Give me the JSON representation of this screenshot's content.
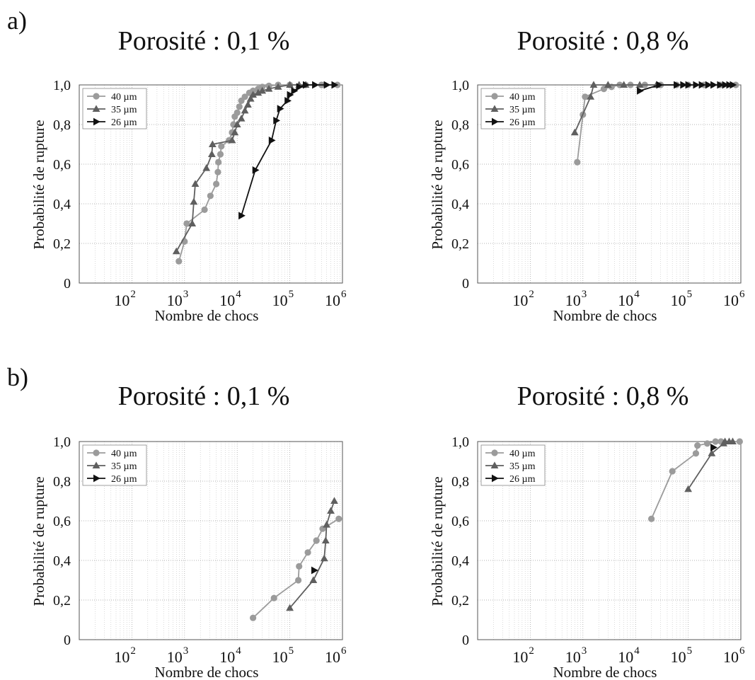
{
  "labels": {
    "a": "a)",
    "b": "b)"
  },
  "titles": {
    "a1": "Porosité : 0,1 %",
    "a2": "Porosité : 0,8 %",
    "b1": "Porosité : 0,1 %",
    "b2": "Porosité : 0,8 %"
  },
  "legend": [
    {
      "name": "40 µm",
      "marker": "circle",
      "color": "#9b9b9b"
    },
    {
      "name": "35 µm",
      "marker": "triangle-up",
      "color": "#5f5f5f"
    },
    {
      "name": "26 µm",
      "marker": "triangle-right",
      "color": "#111111"
    }
  ],
  "chart_data": [
    {
      "type": "line",
      "panel": "a1",
      "title": "Porosité : 0,1 %",
      "xlabel": "Nombre de chocs",
      "ylabel": "Probabilité de rupture",
      "xscale": "log",
      "xlim": [
        10,
        1000000
      ],
      "ylim": [
        0,
        1
      ],
      "xticks": [
        {
          "value": 100,
          "base": "10",
          "exp": "2"
        },
        {
          "value": 1000,
          "base": "10",
          "exp": "3"
        },
        {
          "value": 10000,
          "base": "10",
          "exp": "4"
        },
        {
          "value": 100000,
          "base": "10",
          "exp": "5"
        },
        {
          "value": 1000000,
          "base": "10",
          "exp": "6"
        }
      ],
      "yticks": [
        {
          "value": 0,
          "label": "0"
        },
        {
          "value": 0.2,
          "label": "0,2"
        },
        {
          "value": 0.4,
          "label": "0,4"
        },
        {
          "value": 0.6,
          "label": "0,6"
        },
        {
          "value": 0.8,
          "label": "0,8"
        },
        {
          "value": 1,
          "label": "1,0"
        }
      ],
      "grid": true,
      "legend_position": "top-left",
      "series": [
        {
          "name": "40 µm",
          "marker": "circle",
          "color": "#9b9b9b",
          "x": [
            780,
            1000,
            1100,
            2400,
            3100,
            4000,
            4300,
            4400,
            4800,
            5000,
            7000,
            8000,
            8500,
            9000,
            10000,
            11000,
            12000,
            14000,
            17000,
            20000,
            25000,
            30000,
            40000,
            60000,
            100000,
            200000,
            400000,
            800000
          ],
          "y": [
            0.11,
            0.21,
            0.3,
            0.37,
            0.44,
            0.5,
            0.56,
            0.61,
            0.65,
            0.69,
            0.72,
            0.76,
            0.8,
            0.84,
            0.86,
            0.89,
            0.92,
            0.94,
            0.96,
            0.97,
            0.98,
            0.99,
            0.995,
            1.0,
            1.0,
            1.0,
            1.0,
            1.0
          ]
        },
        {
          "name": "35 µm",
          "marker": "triangle-up",
          "color": "#5f5f5f",
          "x": [
            700,
            1400,
            1500,
            1600,
            2600,
            3300,
            3400,
            8000,
            9000,
            10000,
            12000,
            14000,
            16000,
            18000,
            20000,
            25000,
            30000,
            40000,
            60000,
            100000,
            150000,
            200000
          ],
          "y": [
            0.16,
            0.3,
            0.41,
            0.5,
            0.58,
            0.65,
            0.7,
            0.72,
            0.76,
            0.8,
            0.83,
            0.87,
            0.9,
            0.93,
            0.95,
            0.96,
            0.97,
            0.98,
            0.99,
            1.0,
            1.0,
            1.0
          ]
        },
        {
          "name": "26 µm",
          "marker": "triangle-right",
          "color": "#111111",
          "x": [
            12000,
            22000,
            45000,
            55000,
            65000,
            90000,
            100000,
            120000,
            150000,
            200000,
            300000,
            500000,
            700000
          ],
          "y": [
            0.34,
            0.57,
            0.72,
            0.82,
            0.88,
            0.92,
            0.95,
            0.97,
            0.99,
            1.0,
            1.0,
            1.0,
            1.0
          ]
        }
      ]
    },
    {
      "type": "line",
      "panel": "a2",
      "title": "Porosité : 0,8 %",
      "xlabel": "Nombre de chocs",
      "ylabel": "Probabilité de rupture",
      "xscale": "log",
      "xlim": [
        10,
        1000000
      ],
      "ylim": [
        0,
        1
      ],
      "xticks": [
        {
          "value": 100,
          "base": "10",
          "exp": "2"
        },
        {
          "value": 1000,
          "base": "10",
          "exp": "3"
        },
        {
          "value": 10000,
          "base": "10",
          "exp": "4"
        },
        {
          "value": 100000,
          "base": "10",
          "exp": "5"
        },
        {
          "value": 1000000,
          "base": "10",
          "exp": "6"
        }
      ],
      "yticks": [
        {
          "value": 0,
          "label": "0"
        },
        {
          "value": 0.2,
          "label": "0,2"
        },
        {
          "value": 0.4,
          "label": "0,4"
        },
        {
          "value": 0.6,
          "label": "0,6"
        },
        {
          "value": 0.8,
          "label": "0,8"
        },
        {
          "value": 1,
          "label": "1,0"
        }
      ],
      "grid": true,
      "legend_position": "top-left",
      "series": [
        {
          "name": "40 µm",
          "marker": "circle",
          "color": "#9b9b9b",
          "x": [
            780,
            1000,
            1100,
            2500,
            3500,
            5000,
            8000,
            15000,
            30000,
            60000,
            100000,
            200000,
            400000,
            800000
          ],
          "y": [
            0.61,
            0.85,
            0.94,
            0.98,
            0.99,
            1.0,
            1.0,
            1.0,
            1.0,
            1.0,
            1.0,
            1.0,
            1.0,
            1.0
          ]
        },
        {
          "name": "35 µm",
          "marker": "triangle-up",
          "color": "#5f5f5f",
          "x": [
            700,
            1400,
            1600,
            3000,
            6000,
            12000,
            25000
          ],
          "y": [
            0.76,
            0.94,
            1.0,
            1.0,
            1.0,
            1.0,
            1.0
          ]
        },
        {
          "name": "26 µm",
          "marker": "triangle-right",
          "color": "#111111",
          "x": [
            12000,
            28000,
            60000,
            80000,
            100000,
            140000,
            180000,
            240000,
            300000,
            400000,
            500000,
            600000,
            700000
          ],
          "y": [
            0.97,
            1.0,
            1.0,
            1.0,
            1.0,
            1.0,
            1.0,
            1.0,
            1.0,
            1.0,
            1.0,
            1.0,
            1.0
          ]
        }
      ]
    },
    {
      "type": "line",
      "panel": "b1",
      "title": "Porosité : 0,1 %",
      "xlabel": "Nombre de chocs",
      "ylabel": "Probabilité de rupture",
      "xscale": "log",
      "xlim": [
        10,
        1000000
      ],
      "ylim": [
        0,
        1
      ],
      "xticks": [
        {
          "value": 100,
          "base": "10",
          "exp": "2"
        },
        {
          "value": 1000,
          "base": "10",
          "exp": "3"
        },
        {
          "value": 10000,
          "base": "10",
          "exp": "4"
        },
        {
          "value": 100000,
          "base": "10",
          "exp": "5"
        },
        {
          "value": 1000000,
          "base": "10",
          "exp": "6"
        }
      ],
      "yticks": [
        {
          "value": 0,
          "label": "0"
        },
        {
          "value": 0.2,
          "label": "0,2"
        },
        {
          "value": 0.4,
          "label": "0,4"
        },
        {
          "value": 0.6,
          "label": "0,6"
        },
        {
          "value": 0.8,
          "label": "0,8"
        },
        {
          "value": 1,
          "label": "1,0"
        }
      ],
      "grid": true,
      "legend_position": "top-left",
      "series": [
        {
          "name": "40 µm",
          "marker": "circle",
          "color": "#9b9b9b",
          "x": [
            20000,
            50000,
            145000,
            150000,
            220000,
            320000,
            420000,
            850000
          ],
          "y": [
            0.11,
            0.21,
            0.3,
            0.37,
            0.44,
            0.5,
            0.56,
            0.61
          ]
        },
        {
          "name": "35 µm",
          "marker": "triangle-up",
          "color": "#5f5f5f",
          "x": [
            100000,
            280000,
            450000,
            480000,
            500000,
            600000,
            700000
          ],
          "y": [
            0.16,
            0.3,
            0.41,
            0.5,
            0.58,
            0.65,
            0.7
          ]
        },
        {
          "name": "26 µm",
          "marker": "triangle-right",
          "color": "#111111",
          "x": [
            290000
          ],
          "y": [
            0.35
          ]
        }
      ]
    },
    {
      "type": "line",
      "panel": "b2",
      "title": "Porosité : 0,8 %",
      "xlabel": "Nombre de chocs",
      "ylabel": "Probabilité de rupture",
      "xscale": "log",
      "xlim": [
        10,
        1000000
      ],
      "ylim": [
        0,
        1
      ],
      "xticks": [
        {
          "value": 100,
          "base": "10",
          "exp": "2"
        },
        {
          "value": 1000,
          "base": "10",
          "exp": "3"
        },
        {
          "value": 10000,
          "base": "10",
          "exp": "4"
        },
        {
          "value": 100000,
          "base": "10",
          "exp": "5"
        },
        {
          "value": 1000000,
          "base": "10",
          "exp": "6"
        }
      ],
      "yticks": [
        {
          "value": 0,
          "label": "0"
        },
        {
          "value": 0.2,
          "label": "0,2"
        },
        {
          "value": 0.4,
          "label": "0,4"
        },
        {
          "value": 0.6,
          "label": "0,6"
        },
        {
          "value": 0.8,
          "label": "0,8"
        },
        {
          "value": 1,
          "label": "1,0"
        }
      ],
      "grid": true,
      "legend_position": "top-left",
      "series": [
        {
          "name": "40 µm",
          "marker": "circle",
          "color": "#9b9b9b",
          "x": [
            20000,
            50000,
            140000,
            150000,
            230000,
            330000,
            420000,
            950000
          ],
          "y": [
            0.61,
            0.85,
            0.94,
            0.98,
            0.99,
            1.0,
            1.0,
            1.0
          ]
        },
        {
          "name": "35 µm",
          "marker": "triangle-up",
          "color": "#5f5f5f",
          "x": [
            100000,
            280000,
            470000,
            500000,
            600000,
            700000
          ],
          "y": [
            0.76,
            0.94,
            0.99,
            1.0,
            1.0,
            1.0
          ]
        },
        {
          "name": "26 µm",
          "marker": "triangle-right",
          "color": "#111111",
          "x": [
            300000
          ],
          "y": [
            0.97
          ]
        }
      ]
    }
  ]
}
